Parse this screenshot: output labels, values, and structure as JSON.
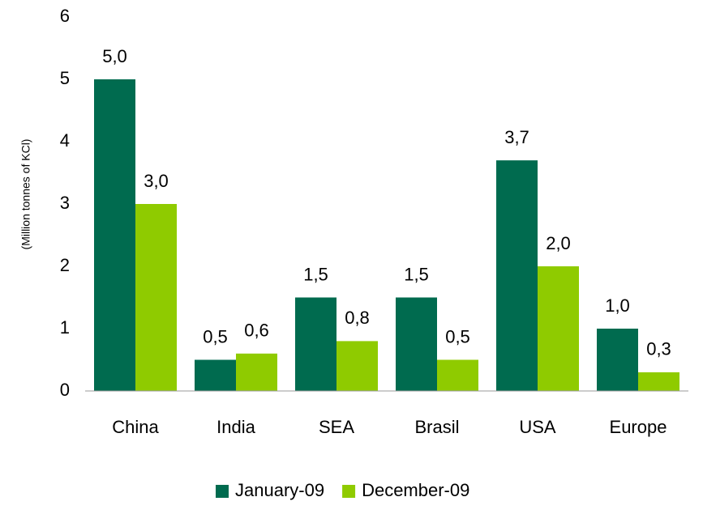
{
  "chart_data": {
    "type": "bar",
    "y_axis_label": "(Million tonnes of KCl)",
    "categories": [
      "China",
      "India",
      "SEA",
      "Brasil",
      "USA",
      "Europe"
    ],
    "series": [
      {
        "name": "January-09",
        "color": "#006b4f",
        "values": [
          5.0,
          0.5,
          1.5,
          1.5,
          3.7,
          1.0
        ],
        "value_labels": [
          "5,0",
          "0,5",
          "1,5",
          "1,5",
          "3,7",
          "1,0"
        ]
      },
      {
        "name": "December-09",
        "color": "#8fcb00",
        "values": [
          3.0,
          0.6,
          0.8,
          0.5,
          2.0,
          0.3
        ],
        "value_labels": [
          "3,0",
          "0,6",
          "0,8",
          "0,5",
          "2,0",
          "0,3"
        ]
      }
    ],
    "ylim": [
      0,
      6
    ],
    "yticks": [
      0,
      1,
      2,
      3,
      4,
      5,
      6
    ],
    "grid": false,
    "legend": "bottom"
  }
}
